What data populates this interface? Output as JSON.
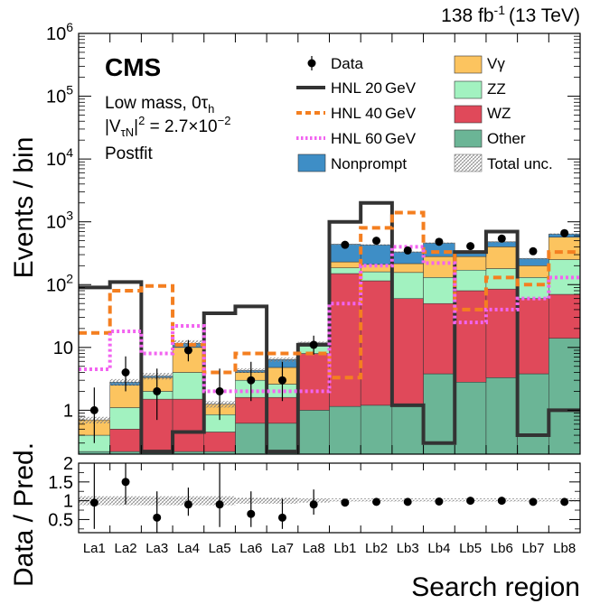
{
  "chart_data": {
    "type": "bar",
    "subtype": "stacked-histogram-with-ratio",
    "lumi_label": "138 fb",
    "lumi_exponent": "-1",
    "energy_label": "(13 TeV)",
    "experiment": "CMS",
    "info_lines": [
      "Low mass, 0τ",
      "h",
      "|V",
      "τN",
      "|",
      "2",
      " = 2.7×10",
      "−2",
      "Postfit"
    ],
    "ylabel": "Events / bin",
    "xlabel": "Search region",
    "ratio_ylabel": "Data / Pred.",
    "yscale": "log",
    "ylim": [
      0.2,
      1000000
    ],
    "y_ticks": [
      "1",
      "10",
      "10",
      "10",
      "10",
      "10",
      "10"
    ],
    "y_tick_exponents": [
      "",
      "",
      "2",
      "3",
      "4",
      "5",
      "6"
    ],
    "ratio_ylim": [
      0.15,
      2.0
    ],
    "ratio_ticks": [
      "0.5",
      "1",
      "1.5",
      "2"
    ],
    "categories": [
      "La1",
      "La2",
      "La3",
      "La4",
      "La5",
      "La6",
      "La7",
      "La8",
      "Lb1",
      "Lb2",
      "Lb3",
      "Lb4",
      "Lb5",
      "Lb6",
      "Lb7",
      "Lb8"
    ],
    "stack_order": [
      "Other",
      "WZ",
      "ZZ",
      "Vγ",
      "Nonprompt"
    ],
    "series": [
      {
        "name": "Other",
        "color": "#6bb596",
        "values": [
          0.22,
          0.22,
          0.22,
          0.22,
          0.22,
          0.62,
          0.62,
          1.0,
          1.15,
          1.2,
          1.15,
          3.8,
          2.8,
          3.3,
          3.8,
          14.0
        ]
      },
      {
        "name": "WZ",
        "color": "#e0495a",
        "values": [
          0.0,
          0.28,
          1.28,
          1.28,
          0.23,
          0.98,
          0.98,
          7.0,
          148.8,
          113.8,
          58.85,
          46.2,
          77.2,
          81.7,
          56.2,
          56.0
        ]
      },
      {
        "name": "ZZ",
        "color": "#a2f2c0",
        "values": [
          0.18,
          0.6,
          0.5,
          2.5,
          0.4,
          1.4,
          1.0,
          3.0,
          35.0,
          45.0,
          96.0,
          80.0,
          90.0,
          95.0,
          70.0,
          180.0
        ]
      },
      {
        "name": "Vγ",
        "color": "#fcc45f",
        "values": [
          0.3,
          1.4,
          1.3,
          6.0,
          0.4,
          1.0,
          2.2,
          0.0,
          45.0,
          50.0,
          60.0,
          150.0,
          110.0,
          220.0,
          70.0,
          320.0
        ]
      },
      {
        "name": "Nonprompt",
        "color": "#3e8ec6",
        "values": [
          0.0,
          0.3,
          0.2,
          1.6,
          0.0,
          0.3,
          1.6,
          0.8,
          210.0,
          220.0,
          115.0,
          180.0,
          40.0,
          80.0,
          60.0,
          70.0
        ]
      }
    ],
    "signals": [
      {
        "name": "HNL 20 GeV",
        "label": "HNL 20",
        "unit": "GeV",
        "color": "#333333",
        "style": "solid",
        "values": [
          90,
          110,
          0.22,
          0.45,
          35,
          45,
          0.22,
          11,
          1000,
          2000,
          1.2,
          0.3,
          330,
          700,
          0.4,
          1.0
        ]
      },
      {
        "name": "HNL 40 GeV",
        "label": "HNL 40",
        "unit": "GeV",
        "color": "#f47f20",
        "style": "dashed",
        "values": [
          17,
          80,
          95,
          11,
          4,
          8,
          8,
          8,
          3.3,
          800,
          1400,
          330,
          40,
          130,
          100,
          330
        ]
      },
      {
        "name": "HNL 60 GeV",
        "label": "HNL 60",
        "unit": "GeV",
        "color": "#f264f0",
        "style": "dotted",
        "values": [
          4.5,
          18,
          8,
          22,
          2,
          2,
          2,
          2,
          50,
          200,
          400,
          220,
          25,
          40,
          60,
          130
        ]
      }
    ],
    "data": {
      "values": [
        1.0,
        4.0,
        2.0,
        9.0,
        2.0,
        3.0,
        3.0,
        11.0,
        430,
        500,
        350,
        480,
        410,
        540,
        340,
        660
      ],
      "err_lo": [
        0.7,
        2.0,
        1.3,
        3.0,
        1.3,
        1.6,
        1.6,
        3.3,
        21,
        22,
        19,
        22,
        20,
        23,
        18,
        26
      ],
      "err_hi": [
        1.3,
        3.2,
        2.6,
        4.1,
        2.6,
        2.9,
        2.9,
        4.4,
        21,
        22,
        19,
        22,
        20,
        23,
        18,
        26
      ]
    },
    "ratio": {
      "values": [
        0.95,
        1.5,
        0.55,
        0.9,
        0.9,
        0.65,
        0.55,
        0.9,
        0.95,
        0.97,
        0.97,
        0.98,
        1.0,
        1.0,
        0.97,
        0.97
      ],
      "err_lo": [
        0.7,
        0.6,
        0.4,
        0.3,
        0.6,
        0.35,
        0.3,
        0.27,
        0.05,
        0.05,
        0.05,
        0.05,
        0.05,
        0.05,
        0.05,
        0.05
      ],
      "err_hi": [
        1.2,
        0.8,
        0.7,
        0.45,
        1.1,
        0.6,
        0.5,
        0.4,
        0.05,
        0.05,
        0.05,
        0.05,
        0.05,
        0.05,
        0.05,
        0.05
      ],
      "unc_band": [
        0.12,
        0.12,
        0.12,
        0.12,
        0.12,
        0.08,
        0.08,
        0.05,
        0.02,
        0.02,
        0.02,
        0.02,
        0.02,
        0.02,
        0.02,
        0.02
      ]
    },
    "legend": {
      "data": "Data",
      "hnl_labels": [
        "HNL 20",
        "HNL 40",
        "HNL 60"
      ],
      "hnl_unit": "GeV",
      "nonprompt": "Nonprompt",
      "vgamma": "Vγ",
      "zz": "ZZ",
      "wz": "WZ",
      "other": "Other",
      "total_unc": "Total unc."
    }
  }
}
